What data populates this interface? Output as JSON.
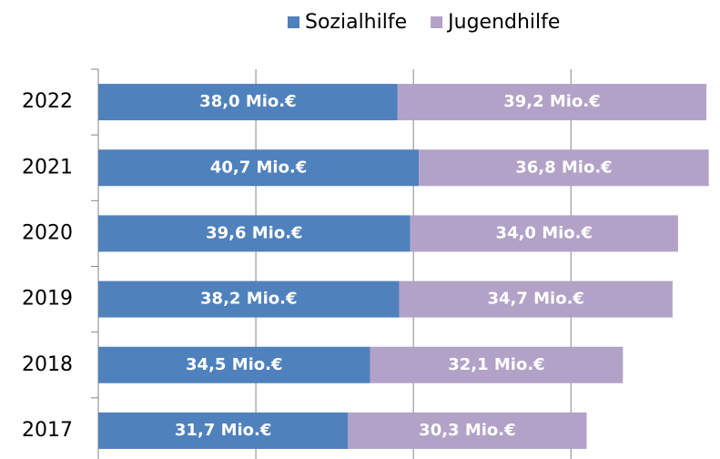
{
  "chart_data": {
    "type": "stacked-barh",
    "categories": [
      "2022",
      "2021",
      "2020",
      "2019",
      "2018",
      "2017"
    ],
    "series": [
      {
        "name": "Sozialhilfe",
        "color": "#4f81bd",
        "values": [
          38.0,
          40.7,
          39.6,
          38.2,
          34.5,
          31.7
        ],
        "value_labels": [
          "38,0 Mio.€",
          "40,7 Mio.€",
          "39,6 Mio.€",
          "38,2 Mio.€",
          "34,5 Mio.€",
          "31,7 Mio.€"
        ]
      },
      {
        "name": "Jugendhilfe",
        "color": "#b3a2c7",
        "values": [
          39.2,
          36.8,
          34.0,
          34.7,
          32.1,
          30.3
        ],
        "value_labels": [
          "39,2 Mio.€",
          "36,8 Mio.€",
          "34,0 Mio.€",
          "34,7 Mio.€",
          "32,1 Mio.€",
          "30,3 Mio.€"
        ]
      }
    ],
    "xlim": [
      0,
      78
    ],
    "xticks": [
      0,
      20,
      40,
      60
    ],
    "grid": true,
    "legend": "top"
  }
}
